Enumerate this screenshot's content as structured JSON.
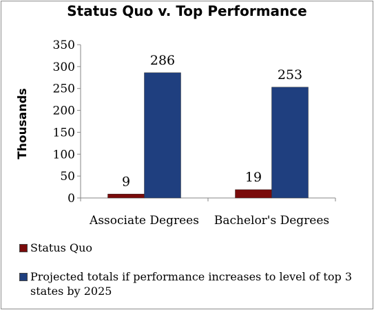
{
  "chart_data": {
    "type": "bar",
    "title": "Status Quo v. Top Performance",
    "ylabel": "Thousands",
    "xlabel": "",
    "ylim": [
      0,
      350
    ],
    "yticks": [
      0,
      50,
      100,
      150,
      200,
      250,
      300,
      350
    ],
    "categories": [
      "Associate Degrees",
      "Bachelor's Degrees"
    ],
    "series": [
      {
        "name": "Status Quo",
        "values": [
          9,
          19
        ],
        "color": "#7a0b0b"
      },
      {
        "name": "Projected totals if performance increases to level of top 3 states by 2025",
        "values": [
          286,
          253
        ],
        "color": "#1f3f7f"
      }
    ],
    "data_labels": [
      [
        "9",
        "19"
      ],
      [
        "286",
        "253"
      ]
    ],
    "grid": false,
    "legend_position": "bottom"
  }
}
